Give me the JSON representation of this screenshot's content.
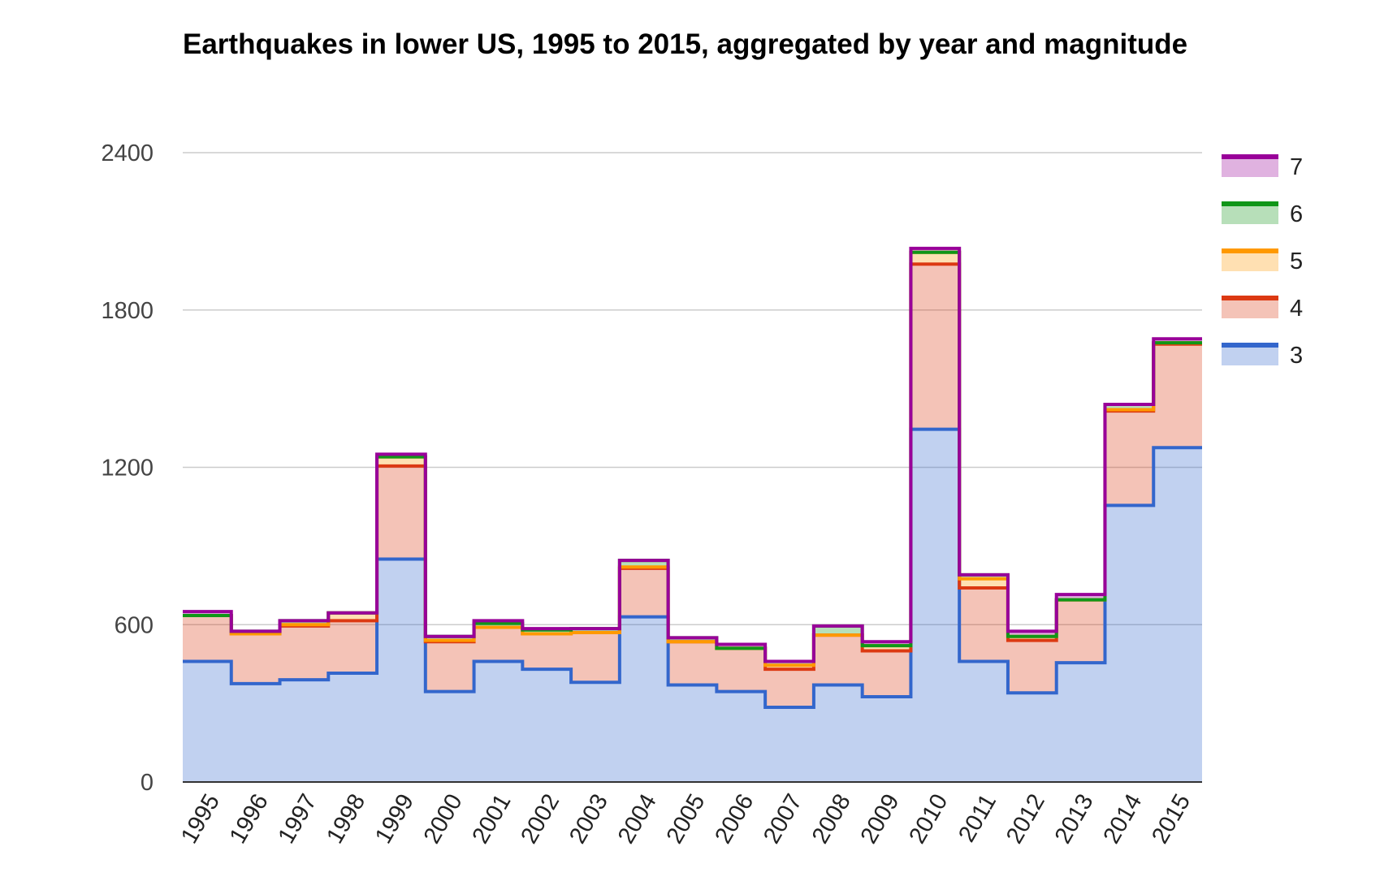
{
  "chart_data": {
    "type": "area",
    "stacked": true,
    "step": true,
    "title": "Earthquakes in lower US, 1995 to 2015, aggregated by year and magnitude",
    "xlabel": "",
    "ylabel": "",
    "categories": [
      "1995",
      "1996",
      "1997",
      "1998",
      "1999",
      "2000",
      "2001",
      "2002",
      "2003",
      "2004",
      "2005",
      "2006",
      "2007",
      "2008",
      "2009",
      "2010",
      "2011",
      "2012",
      "2013",
      "2014",
      "2015"
    ],
    "ylim": [
      0,
      2400
    ],
    "yticks": [
      "0",
      "600",
      "1200",
      "1800",
      "2400"
    ],
    "grid": true,
    "legend_position": "right",
    "series": [
      {
        "name": "3",
        "color": "#3366cc",
        "values": [
          460,
          375,
          390,
          415,
          850,
          345,
          460,
          430,
          380,
          630,
          370,
          345,
          285,
          370,
          325,
          1345,
          460,
          340,
          455,
          1055,
          1275
        ]
      },
      {
        "name": "4",
        "color": "#dc3912",
        "values": [
          175,
          190,
          205,
          200,
          355,
          190,
          130,
          135,
          190,
          185,
          165,
          165,
          145,
          190,
          175,
          630,
          280,
          200,
          240,
          360,
          395
        ]
      },
      {
        "name": "5",
        "color": "#ff9900",
        "values": [
          0,
          0,
          5,
          30,
          35,
          5,
          0,
          0,
          0,
          5,
          0,
          0,
          15,
          0,
          20,
          45,
          35,
          15,
          0,
          5,
          5
        ]
      },
      {
        "name": "6",
        "color": "#109618",
        "values": [
          0,
          10,
          15,
          0,
          0,
          15,
          15,
          15,
          15,
          25,
          15,
          0,
          15,
          35,
          0,
          0,
          15,
          0,
          0,
          20,
          0
        ]
      },
      {
        "name": "7",
        "color": "#990099",
        "values": [
          15,
          0,
          0,
          0,
          10,
          0,
          10,
          5,
          0,
          0,
          0,
          15,
          0,
          0,
          15,
          15,
          0,
          20,
          20,
          0,
          15
        ]
      }
    ]
  }
}
